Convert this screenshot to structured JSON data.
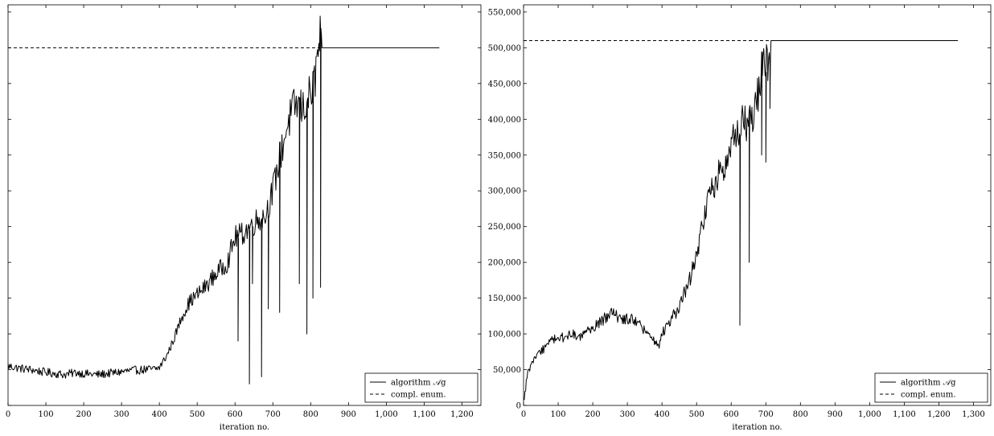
{
  "chart_data": [
    {
      "type": "line",
      "xlabel": "iteration no.",
      "ylabel": "",
      "xlim": [
        0,
        1250
      ],
      "ylim": [
        0,
        560000
      ],
      "xticks": [
        0,
        100,
        200,
        300,
        400,
        500,
        600,
        700,
        800,
        900,
        1000,
        1100,
        1200
      ],
      "xtick_labels": [
        "0",
        "100",
        "200",
        "300",
        "400",
        "500",
        "600",
        "700",
        "800",
        "900",
        "1,000",
        "1,100",
        "1,200"
      ],
      "grid": false,
      "legend": "bottom-right",
      "series": [
        {
          "name": "algorithm 𝒜g",
          "style": "solid",
          "x": [
            0,
            30,
            60,
            90,
            120,
            150,
            180,
            210,
            240,
            270,
            300,
            330,
            360,
            390,
            400,
            420,
            440,
            460,
            480,
            500,
            520,
            540,
            560,
            580,
            600,
            620,
            640,
            660,
            680,
            700,
            720,
            740,
            760,
            780,
            800,
            810,
            820,
            825,
            830,
            1140
          ],
          "y": [
            55000,
            52000,
            50000,
            47000,
            45000,
            43000,
            46000,
            44000,
            43000,
            45000,
            47000,
            49000,
            50000,
            51000,
            53000,
            70000,
            95000,
            125000,
            145000,
            155000,
            165000,
            178000,
            190000,
            200000,
            235000,
            240000,
            250000,
            260000,
            265000,
            300000,
            350000,
            395000,
            420000,
            415000,
            435000,
            450000,
            495000,
            510000,
            500000,
            500000
          ],
          "drops": [
            {
              "x": 608,
              "y": 90000
            },
            {
              "x": 638,
              "y": 30000
            },
            {
              "x": 646,
              "y": 170000
            },
            {
              "x": 670,
              "y": 40000
            },
            {
              "x": 688,
              "y": 135000
            },
            {
              "x": 718,
              "y": 130000
            },
            {
              "x": 770,
              "y": 170000
            },
            {
              "x": 790,
              "y": 100000
            },
            {
              "x": 806,
              "y": 150000
            },
            {
              "x": 826,
              "y": 165000
            }
          ]
        },
        {
          "name": "compl. enum.",
          "style": "dashed",
          "x": [
            0,
            830
          ],
          "y": [
            500000,
            500000
          ]
        }
      ]
    },
    {
      "type": "line",
      "xlabel": "iteration no.",
      "ylabel": "",
      "xlim": [
        0,
        1350
      ],
      "ylim": [
        0,
        560000
      ],
      "xticks": [
        0,
        100,
        200,
        300,
        400,
        500,
        600,
        700,
        800,
        900,
        1000,
        1100,
        1200,
        1300
      ],
      "xtick_labels": [
        "0",
        "100",
        "200",
        "300",
        "400",
        "500",
        "600",
        "700",
        "800",
        "900",
        "1,000",
        "1,100",
        "1,200",
        "1,300"
      ],
      "yticks": [
        0,
        50000,
        100000,
        150000,
        200000,
        250000,
        300000,
        350000,
        400000,
        450000,
        500000,
        550000
      ],
      "ytick_labels": [
        "0",
        "50,000",
        "100,000",
        "150,000",
        "200,000",
        "250,000",
        "300,000",
        "350,000",
        "400,000",
        "450,000",
        "500,000",
        "550,000"
      ],
      "grid": false,
      "legend": "bottom-right",
      "series": [
        {
          "name": "algorithm 𝒜g",
          "style": "solid",
          "x": [
            0,
            10,
            20,
            40,
            60,
            80,
            100,
            120,
            140,
            160,
            180,
            200,
            220,
            240,
            260,
            280,
            300,
            320,
            340,
            360,
            380,
            390,
            400,
            420,
            440,
            460,
            480,
            500,
            520,
            540,
            560,
            580,
            600,
            620,
            640,
            660,
            680,
            690,
            700,
            710,
            715,
            1255
          ],
          "y": [
            5000,
            40000,
            55000,
            70000,
            80000,
            90000,
            95000,
            95000,
            100000,
            95000,
            100000,
            110000,
            115000,
            125000,
            128000,
            120000,
            122000,
            118000,
            110000,
            100000,
            90000,
            80000,
            100000,
            115000,
            130000,
            150000,
            175000,
            210000,
            260000,
            300000,
            320000,
            330000,
            360000,
            390000,
            395000,
            400000,
            440000,
            480000,
            470000,
            490000,
            510000,
            510000
          ],
          "drops": [
            {
              "x": 625,
              "y": 112000
            },
            {
              "x": 652,
              "y": 200000
            },
            {
              "x": 688,
              "y": 350000
            },
            {
              "x": 700,
              "y": 340000
            },
            {
              "x": 712,
              "y": 415000
            }
          ]
        },
        {
          "name": "compl. enum.",
          "style": "dashed",
          "x": [
            0,
            715
          ],
          "y": [
            510000,
            510000
          ]
        }
      ]
    }
  ]
}
